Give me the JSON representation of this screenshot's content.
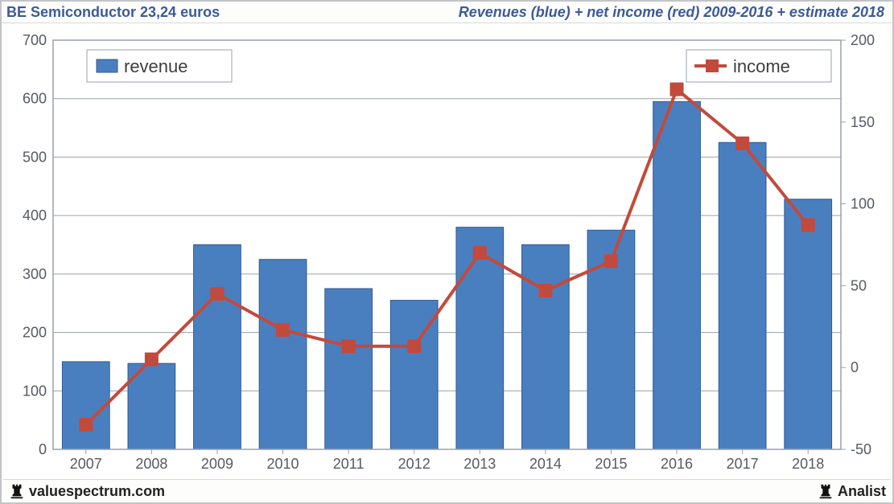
{
  "header": {
    "left": "BE Semiconductor 23,24 euros",
    "right": "Revenues (blue) + net income (red) 2009-2016 + estimate 2018",
    "left_color": "#3c5a99",
    "right_color": "#3c5a99"
  },
  "footer": {
    "left_text": "valuespectrum.com",
    "right_text": "Analist",
    "icon_name": "rook-icon",
    "text_color": "#222222"
  },
  "chart": {
    "type": "bar+line-dual-axis",
    "background_color": "#ffffff",
    "plot_border_color": "#9aa0ab",
    "gridline_color": "#9aa0ab",
    "categories": [
      "2007",
      "2008",
      "2009",
      "2010",
      "2011",
      "2012",
      "2013",
      "2014",
      "2015",
      "2016",
      "2017",
      "2018"
    ],
    "bars": {
      "label": "revenue",
      "values": [
        150,
        147,
        350,
        325,
        275,
        255,
        380,
        350,
        375,
        595,
        525,
        428
      ],
      "color": "#4a7fbf",
      "border_color": "#2f5a94",
      "width_frac": 0.72
    },
    "line": {
      "label": "income",
      "values": [
        -35,
        5,
        45,
        23,
        13,
        13,
        70,
        47,
        65,
        170,
        137,
        87
      ],
      "stroke_color": "#c24a3d",
      "stroke_width": 4,
      "marker_fill": "#c24a3d",
      "marker_stroke": "#c24a3d",
      "marker_size": 16
    },
    "y_left": {
      "min": 0,
      "max": 700,
      "step": 100
    },
    "y_right": {
      "min": -50,
      "max": 200,
      "step": 50
    },
    "axis_font_size": 18,
    "axis_font_color": "#555a64",
    "legend": {
      "revenue_box_color": "#4a7fbf",
      "income_line_color": "#c24a3d",
      "font_size": 22,
      "font_color": "#3d3d3d",
      "border_color": "#9aa0ab"
    }
  }
}
